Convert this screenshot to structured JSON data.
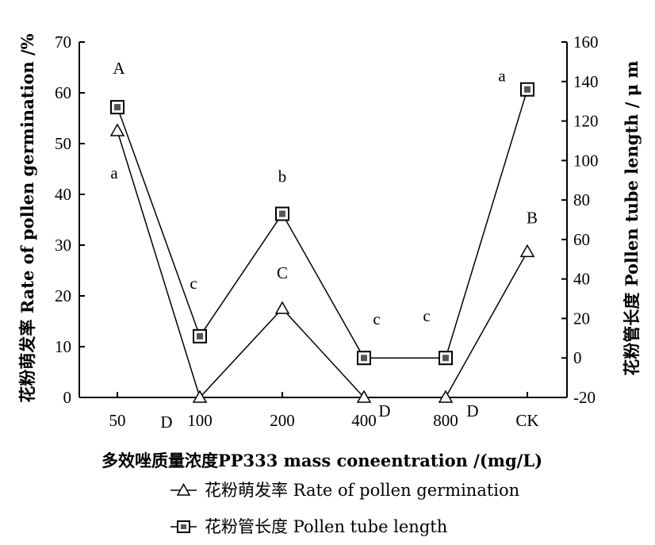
{
  "chart_data": {
    "type": "line",
    "categories": [
      "50",
      "100",
      "200",
      "400",
      "800",
      "CK"
    ],
    "xlabel": "多效唑质量浓度PP333 mass coneentration /(mg/L)",
    "ylabel_left": "花粉萌发率 Rate of pollen germination /%",
    "ylabel_right": "花粉管长度 Pollen tube length / μ m",
    "ylim_left": [
      0,
      70
    ],
    "ylim_right": [
      -20,
      160
    ],
    "yticks_left": [
      "0",
      "10",
      "20",
      "30",
      "40",
      "50",
      "60",
      "70"
    ],
    "yticks_right": [
      "-20",
      "0",
      "20",
      "40",
      "60",
      "80",
      "100",
      "120",
      "140",
      "160"
    ],
    "grid": false,
    "legend_position": "bottom",
    "series": [
      {
        "name": "花粉萌发率 Rate of pollen germination",
        "axis": "left",
        "marker": "triangle",
        "values": [
          52.5,
          0,
          17.5,
          0,
          0,
          28.7
        ],
        "labels": [
          "a",
          "D",
          "C",
          "D",
          "D",
          "B"
        ]
      },
      {
        "name": "花粉管长度 Pollen tube length",
        "axis": "right",
        "marker": "square",
        "values": [
          127,
          11,
          73,
          0,
          0,
          136
        ],
        "labels": [
          "A",
          "c",
          "b",
          "c",
          "c",
          "a"
        ]
      }
    ]
  }
}
